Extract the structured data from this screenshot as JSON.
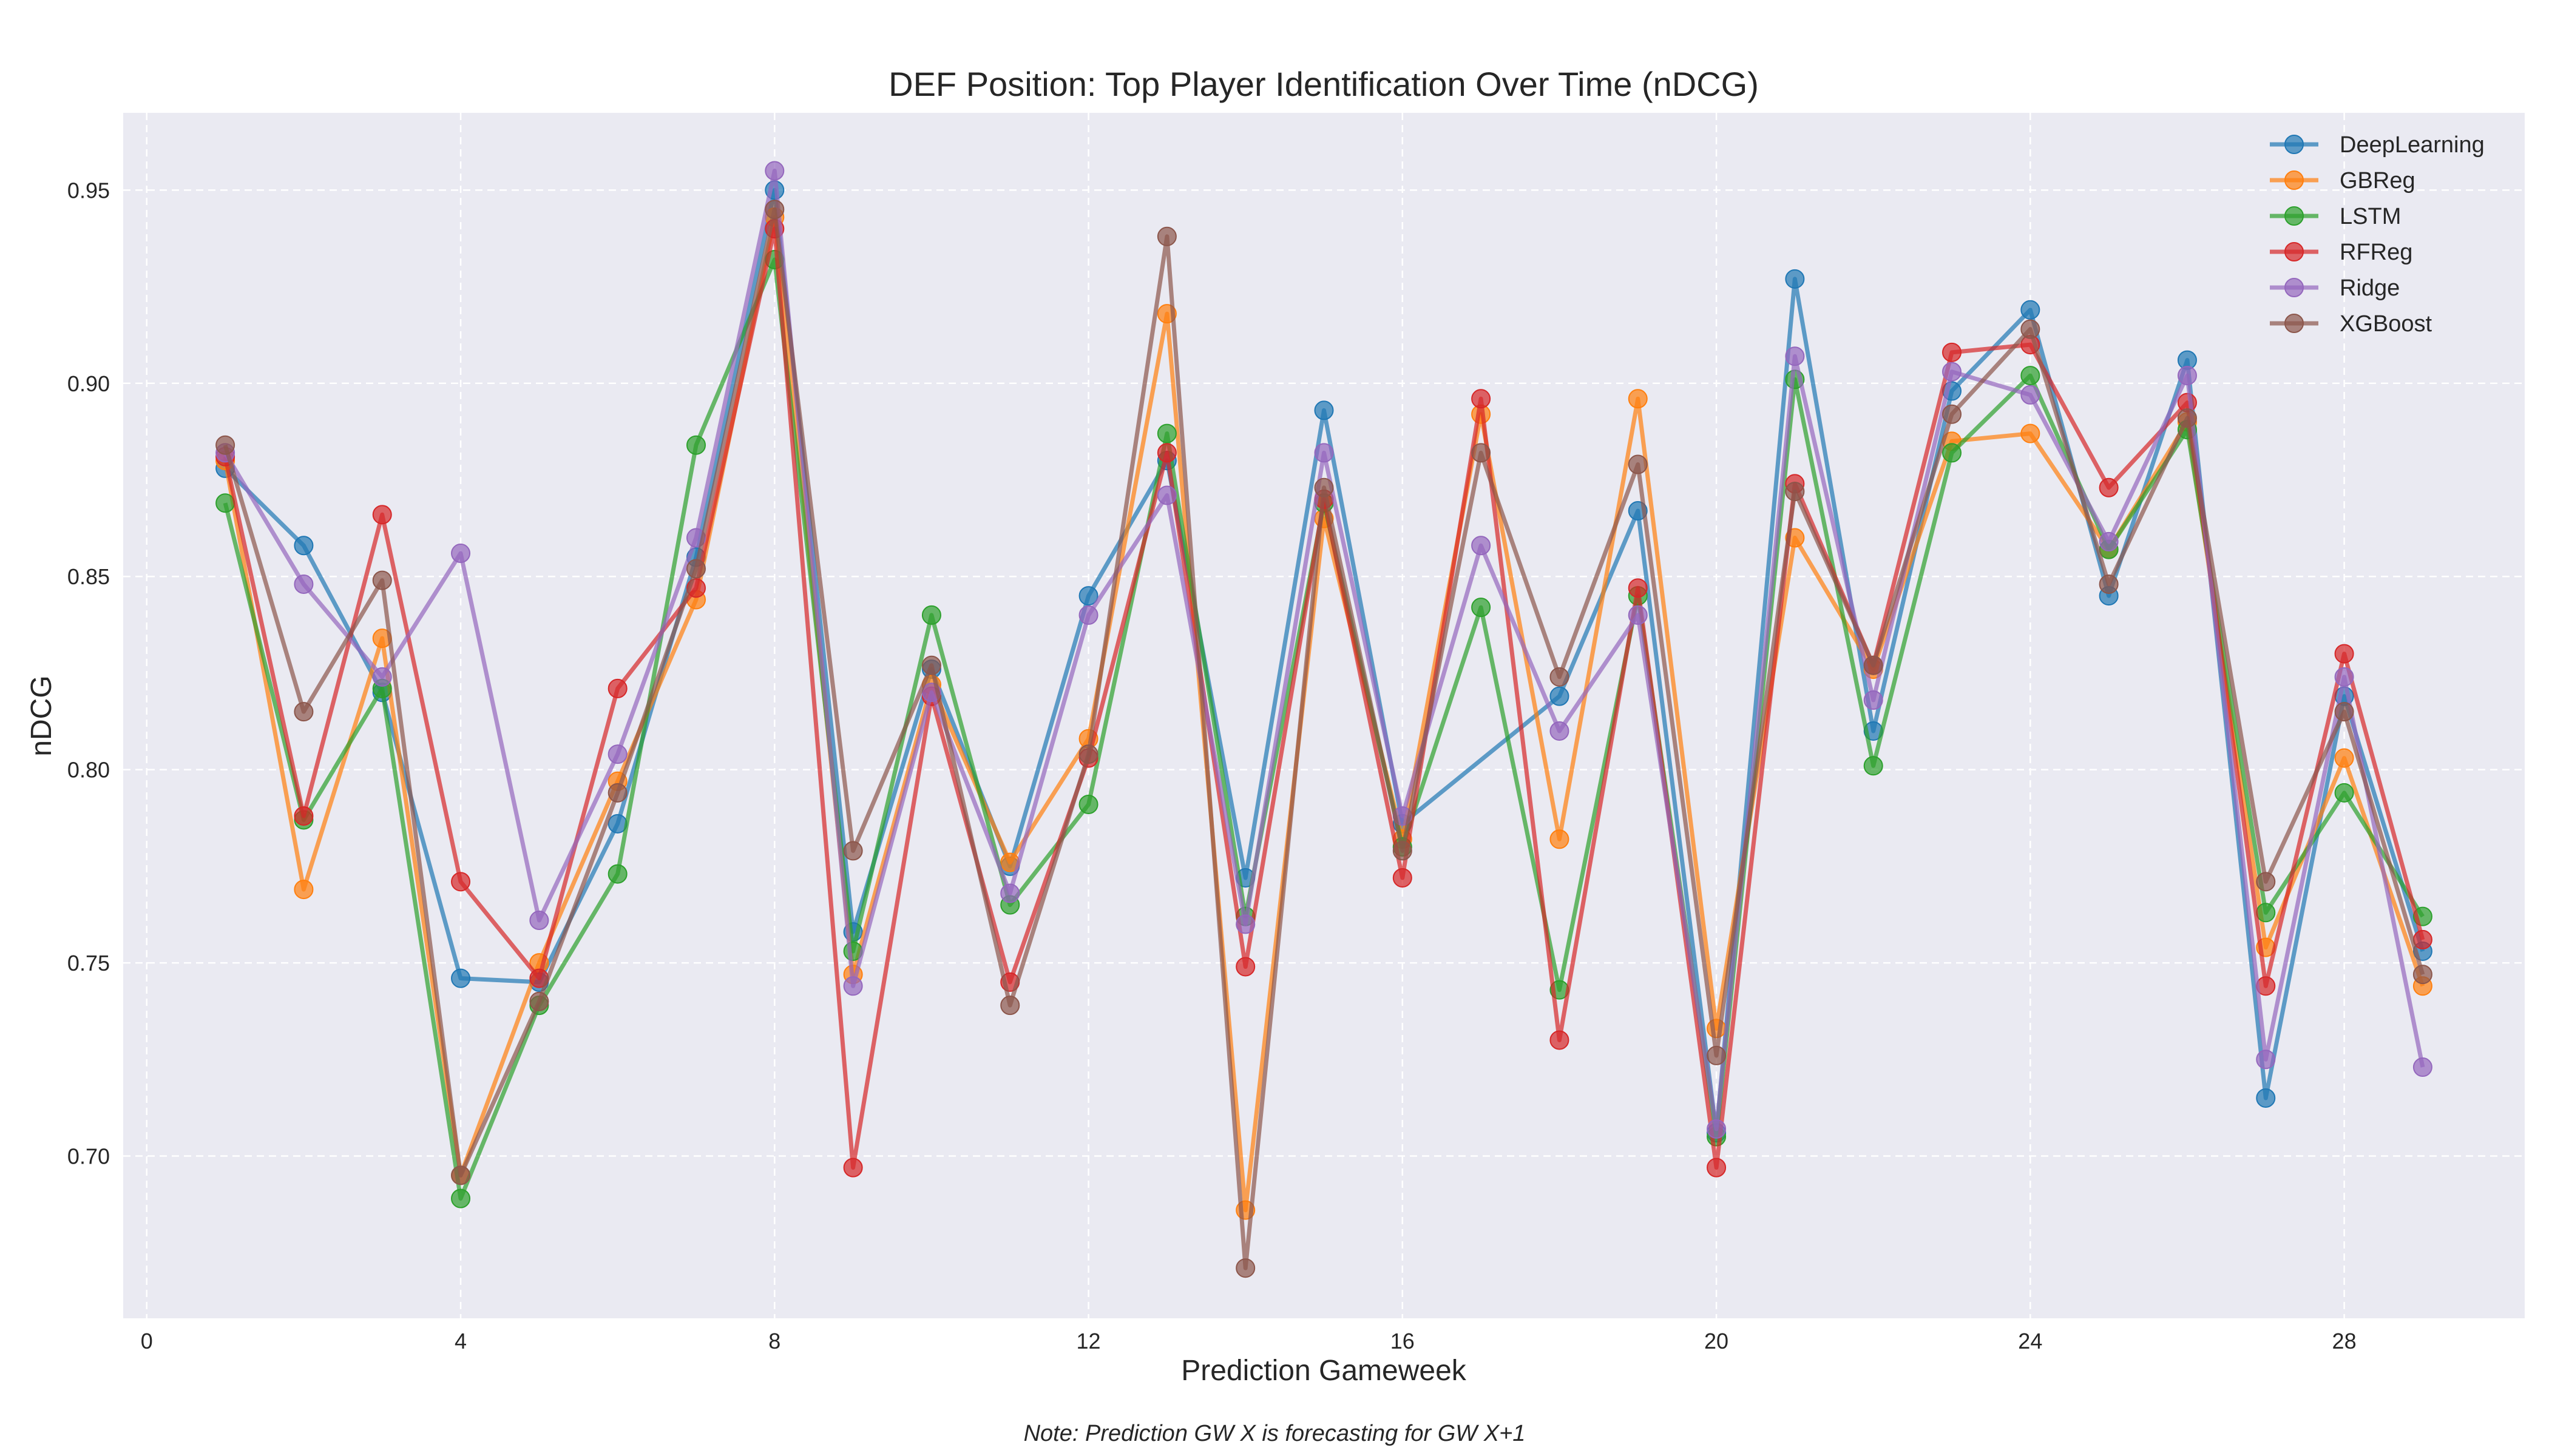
{
  "chart_data": {
    "type": "line",
    "title": "DEF Position: Top Player Identification Over Time (nDCG)",
    "xlabel": "Prediction Gameweek",
    "ylabel": "nDCG",
    "note": "Note: Prediction GW X is forecasting for GW X+1",
    "xlim": [
      -0.3,
      30.3
    ],
    "ylim": [
      0.658,
      0.97
    ],
    "xticks": [
      0,
      4,
      8,
      12,
      16,
      20,
      24,
      28
    ],
    "yticks": [
      0.7,
      0.75,
      0.8,
      0.85,
      0.9,
      0.95
    ],
    "grid": true,
    "legend_position": "top-right",
    "series": [
      {
        "name": "DeepLearning",
        "color": "#1f77b4",
        "x": [
          1,
          2,
          3,
          4,
          5,
          6,
          7,
          8,
          9,
          10,
          11,
          12,
          13,
          14,
          15,
          16,
          18,
          19,
          20,
          21,
          22,
          23,
          24,
          25,
          26,
          27,
          28,
          29
        ],
        "values": [
          0.878,
          0.858,
          0.82,
          0.746,
          0.745,
          0.786,
          0.855,
          0.95,
          0.758,
          0.826,
          0.775,
          0.845,
          0.88,
          0.772,
          0.893,
          0.786,
          0.819,
          0.867,
          0.706,
          0.927,
          0.81,
          0.898,
          0.919,
          0.845,
          0.906,
          0.715,
          0.819,
          0.753
        ]
      },
      {
        "name": "GBReg",
        "color": "#ff7f0e",
        "x": [
          1,
          2,
          3,
          4,
          5,
          6,
          7,
          8,
          9,
          10,
          11,
          12,
          13,
          14,
          15,
          16,
          17,
          18,
          19,
          20,
          21,
          22,
          23,
          24,
          25,
          26,
          27,
          28,
          29
        ],
        "values": [
          0.88,
          0.769,
          0.834,
          0.695,
          0.75,
          0.797,
          0.844,
          0.943,
          0.747,
          0.822,
          0.776,
          0.808,
          0.918,
          0.686,
          0.865,
          0.782,
          0.892,
          0.782,
          0.896,
          0.733,
          0.86,
          0.826,
          0.885,
          0.887,
          0.857,
          0.89,
          0.754,
          0.803,
          0.744
        ]
      },
      {
        "name": "LSTM",
        "color": "#2ca02c",
        "x": [
          1,
          2,
          3,
          4,
          5,
          6,
          7,
          8,
          9,
          10,
          11,
          12,
          13,
          14,
          15,
          16,
          17,
          18,
          19,
          20,
          21,
          22,
          23,
          24,
          25,
          26,
          27,
          28,
          29
        ],
        "values": [
          0.869,
          0.787,
          0.821,
          0.689,
          0.739,
          0.773,
          0.884,
          0.932,
          0.753,
          0.84,
          0.765,
          0.791,
          0.887,
          0.762,
          0.869,
          0.78,
          0.842,
          0.743,
          0.845,
          0.705,
          0.901,
          0.801,
          0.882,
          0.902,
          0.857,
          0.888,
          0.763,
          0.794,
          0.762
        ]
      },
      {
        "name": "RFReg",
        "color": "#d62728",
        "x": [
          1,
          2,
          3,
          4,
          5,
          6,
          7,
          8,
          9,
          10,
          11,
          12,
          13,
          14,
          15,
          16,
          17,
          18,
          19,
          20,
          21,
          22,
          23,
          24,
          25,
          26,
          27,
          28,
          29
        ],
        "values": [
          0.881,
          0.788,
          0.866,
          0.771,
          0.746,
          0.821,
          0.847,
          0.94,
          0.697,
          0.819,
          0.745,
          0.803,
          0.882,
          0.749,
          0.87,
          0.772,
          0.896,
          0.73,
          0.847,
          0.697,
          0.874,
          0.827,
          0.908,
          0.91,
          0.873,
          0.895,
          0.744,
          0.83,
          0.756
        ]
      },
      {
        "name": "Ridge",
        "color": "#9467bd",
        "x": [
          1,
          2,
          3,
          4,
          5,
          6,
          7,
          8,
          9,
          10,
          11,
          12,
          13,
          14,
          15,
          16,
          17,
          18,
          19,
          20,
          21,
          22,
          23,
          24,
          25,
          26,
          27,
          28,
          29
        ],
        "values": [
          0.882,
          0.848,
          0.824,
          0.856,
          0.761,
          0.804,
          0.86,
          0.955,
          0.744,
          0.82,
          0.768,
          0.84,
          0.871,
          0.76,
          0.882,
          0.788,
          0.858,
          0.81,
          0.84,
          0.707,
          0.907,
          0.818,
          0.903,
          0.897,
          0.859,
          0.902,
          0.725,
          0.824,
          0.723
        ]
      },
      {
        "name": "XGBoost",
        "color": "#8c564b",
        "x": [
          1,
          2,
          3,
          4,
          5,
          6,
          7,
          8,
          9,
          10,
          11,
          12,
          13,
          14,
          15,
          16,
          17,
          18,
          19,
          20,
          21,
          22,
          23,
          24,
          25,
          26,
          27,
          28,
          29
        ],
        "values": [
          0.884,
          0.815,
          0.849,
          0.695,
          0.74,
          0.794,
          0.852,
          0.945,
          0.779,
          0.827,
          0.739,
          0.804,
          0.938,
          0.671,
          0.873,
          0.779,
          0.882,
          0.824,
          0.879,
          0.726,
          0.872,
          0.827,
          0.892,
          0.914,
          0.848,
          0.891,
          0.771,
          0.815,
          0.747
        ]
      }
    ]
  }
}
